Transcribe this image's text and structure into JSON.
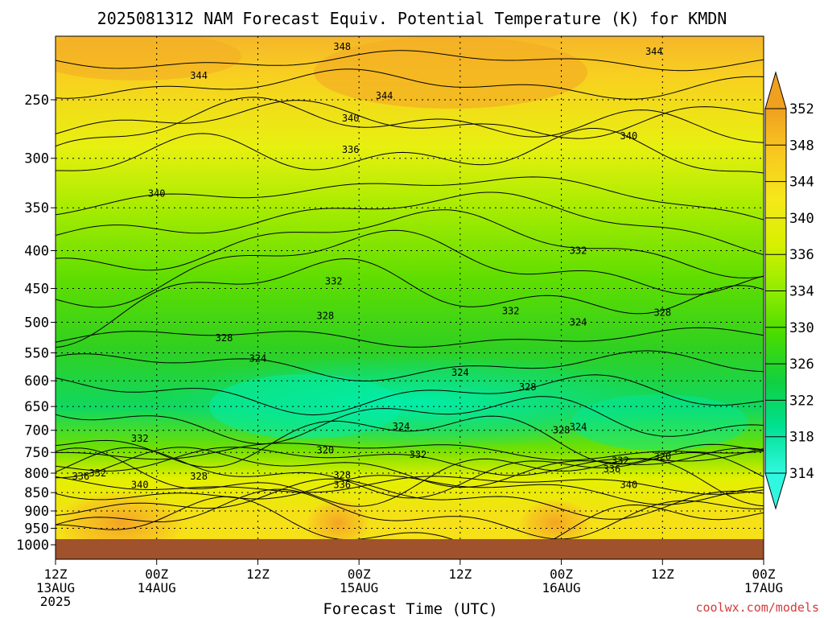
{
  "chart_data": {
    "type": "contour",
    "title": "2025081312 NAM Forecast Equiv. Potential Temperature (K) for KMDN",
    "xlabel": "Forecast Time (UTC)",
    "ylabel": "",
    "y_scale": "log",
    "y_reversed": true,
    "ylim": [
      1000,
      200
    ],
    "xlim": [
      0,
      84
    ],
    "y_ticks": [
      250,
      300,
      350,
      400,
      450,
      500,
      550,
      600,
      650,
      700,
      750,
      800,
      850,
      900,
      950,
      1000
    ],
    "y_tick_labels": [
      "250",
      "300",
      "350",
      "400",
      "450",
      "500",
      "550",
      "600",
      "650",
      "700",
      "750",
      "800",
      "850",
      "900",
      "950",
      "1000"
    ],
    "x_ticks": [
      {
        "hour": 0,
        "l1": "12Z",
        "l2": "13AUG",
        "l3": "2025"
      },
      {
        "hour": 12,
        "l1": "00Z",
        "l2": "14AUG",
        "l3": ""
      },
      {
        "hour": 24,
        "l1": "12Z",
        "l2": "",
        "l3": ""
      },
      {
        "hour": 36,
        "l1": "00Z",
        "l2": "15AUG",
        "l3": ""
      },
      {
        "hour": 48,
        "l1": "12Z",
        "l2": "",
        "l3": ""
      },
      {
        "hour": 60,
        "l1": "00Z",
        "l2": "16AUG",
        "l3": ""
      },
      {
        "hour": 72,
        "l1": "12Z",
        "l2": "",
        "l3": ""
      },
      {
        "hour": 84,
        "l1": "00Z",
        "l2": "17AUG",
        "l3": ""
      }
    ],
    "grid": true,
    "colorbar": {
      "levels": [
        352,
        348,
        344,
        340,
        336,
        334,
        330,
        326,
        322,
        318,
        314
      ],
      "labels": [
        "352",
        "348",
        "344",
        "340",
        "336",
        "334",
        "330",
        "326",
        "322",
        "318",
        "314"
      ],
      "colors": [
        "#f0a020",
        "#f8c820",
        "#f5e81a",
        "#d8f000",
        "#a8f000",
        "#68e800",
        "#38d800",
        "#10d040",
        "#00e080",
        "#10f0b0",
        "#30f8e0"
      ],
      "placement": "right"
    },
    "contour_levels": [
      314,
      316,
      318,
      320,
      322,
      324,
      326,
      328,
      330,
      332,
      334,
      336,
      338,
      340,
      342,
      344,
      346,
      348,
      350
    ],
    "contour_labels": [
      {
        "hour": 34,
        "p": 212,
        "value": "348"
      },
      {
        "hour": 17,
        "p": 232,
        "value": "344"
      },
      {
        "hour": 39,
        "p": 247,
        "value": "344"
      },
      {
        "hour": 71,
        "p": 215,
        "value": "344"
      },
      {
        "hour": 35,
        "p": 265,
        "value": "340"
      },
      {
        "hour": 68,
        "p": 280,
        "value": "340"
      },
      {
        "hour": 12,
        "p": 335,
        "value": "340"
      },
      {
        "hour": 35,
        "p": 292,
        "value": "336"
      },
      {
        "hour": 62,
        "p": 400,
        "value": "332"
      },
      {
        "hour": 33,
        "p": 440,
        "value": "332"
      },
      {
        "hour": 54,
        "p": 483,
        "value": "332"
      },
      {
        "hour": 72,
        "p": 485,
        "value": "328"
      },
      {
        "hour": 32,
        "p": 490,
        "value": "328"
      },
      {
        "hour": 20,
        "p": 525,
        "value": "328"
      },
      {
        "hour": 62,
        "p": 500,
        "value": "324"
      },
      {
        "hour": 24,
        "p": 560,
        "value": "324"
      },
      {
        "hour": 48,
        "p": 585,
        "value": "324"
      },
      {
        "hour": 56,
        "p": 612,
        "value": "328"
      },
      {
        "hour": 10,
        "p": 718,
        "value": "332"
      },
      {
        "hour": 41,
        "p": 692,
        "value": "324"
      },
      {
        "hour": 60,
        "p": 700,
        "value": "328"
      },
      {
        "hour": 62,
        "p": 693,
        "value": "324"
      },
      {
        "hour": 32,
        "p": 745,
        "value": "320"
      },
      {
        "hour": 43,
        "p": 755,
        "value": "332"
      },
      {
        "hour": 72,
        "p": 760,
        "value": "320"
      },
      {
        "hour": 67,
        "p": 770,
        "value": "332"
      },
      {
        "hour": 66,
        "p": 790,
        "value": "336"
      },
      {
        "hour": 5,
        "p": 800,
        "value": "332"
      },
      {
        "hour": 3,
        "p": 808,
        "value": "336"
      },
      {
        "hour": 17,
        "p": 808,
        "value": "328"
      },
      {
        "hour": 34,
        "p": 805,
        "value": "328"
      },
      {
        "hour": 10,
        "p": 830,
        "value": "340"
      },
      {
        "hour": 34,
        "p": 830,
        "value": "336"
      },
      {
        "hour": 68,
        "p": 830,
        "value": "340"
      }
    ]
  },
  "credit": "coolwx.com/models"
}
